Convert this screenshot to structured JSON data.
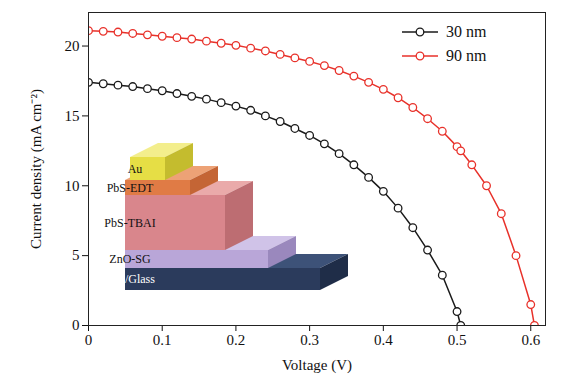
{
  "chart_data": {
    "type": "line",
    "x_label": "Voltage (V)",
    "y_label": "Current density (mA cm⁻²)",
    "x": [
      0,
      0.02,
      0.04,
      0.06,
      0.08,
      0.1,
      0.12,
      0.14,
      0.16,
      0.18,
      0.2,
      0.22,
      0.24,
      0.26,
      0.28,
      0.3,
      0.32,
      0.34,
      0.36,
      0.38,
      0.4,
      0.42,
      0.44,
      0.46,
      0.48,
      0.5,
      0.505,
      0.52,
      0.54,
      0.56,
      0.58,
      0.6,
      0.605
    ],
    "series": [
      {
        "name": "30 nm",
        "color": "#1a1a1a",
        "marker": "circle",
        "line_style": "solid",
        "values": [
          17.4,
          17.3,
          17.2,
          17.1,
          16.95,
          16.8,
          16.6,
          16.4,
          16.2,
          15.95,
          15.7,
          15.4,
          15.0,
          14.6,
          14.1,
          13.6,
          13.0,
          12.3,
          11.5,
          10.6,
          9.6,
          8.4,
          7.0,
          5.4,
          3.6,
          1.0,
          0,
          null,
          null,
          null,
          null,
          null,
          null
        ]
      },
      {
        "name": "90 nm",
        "color": "#e8312a",
        "marker": "circle",
        "line_style": "solid",
        "values": [
          21.1,
          21.05,
          21.0,
          20.9,
          20.8,
          20.7,
          20.6,
          20.5,
          20.35,
          20.2,
          20.05,
          19.85,
          19.65,
          19.4,
          19.15,
          18.9,
          18.6,
          18.25,
          17.85,
          17.4,
          16.9,
          16.3,
          15.6,
          14.8,
          13.9,
          12.8,
          12.5,
          11.5,
          10.0,
          8.0,
          5.0,
          1.5,
          0
        ]
      }
    ],
    "xlim": [
      0,
      0.62
    ],
    "xticks": [
      0,
      0.1,
      0.2,
      0.3,
      0.4,
      0.5,
      0.6
    ],
    "ylim": [
      0,
      22.4
    ],
    "yticks": [
      0,
      5,
      10,
      15,
      20
    ],
    "grid": false,
    "legend": "upper right",
    "annotations": [
      "Au",
      "PbS-EDT",
      "PbS-TBAI",
      "ZnO-SG",
      "ITO/Glass"
    ]
  }
}
